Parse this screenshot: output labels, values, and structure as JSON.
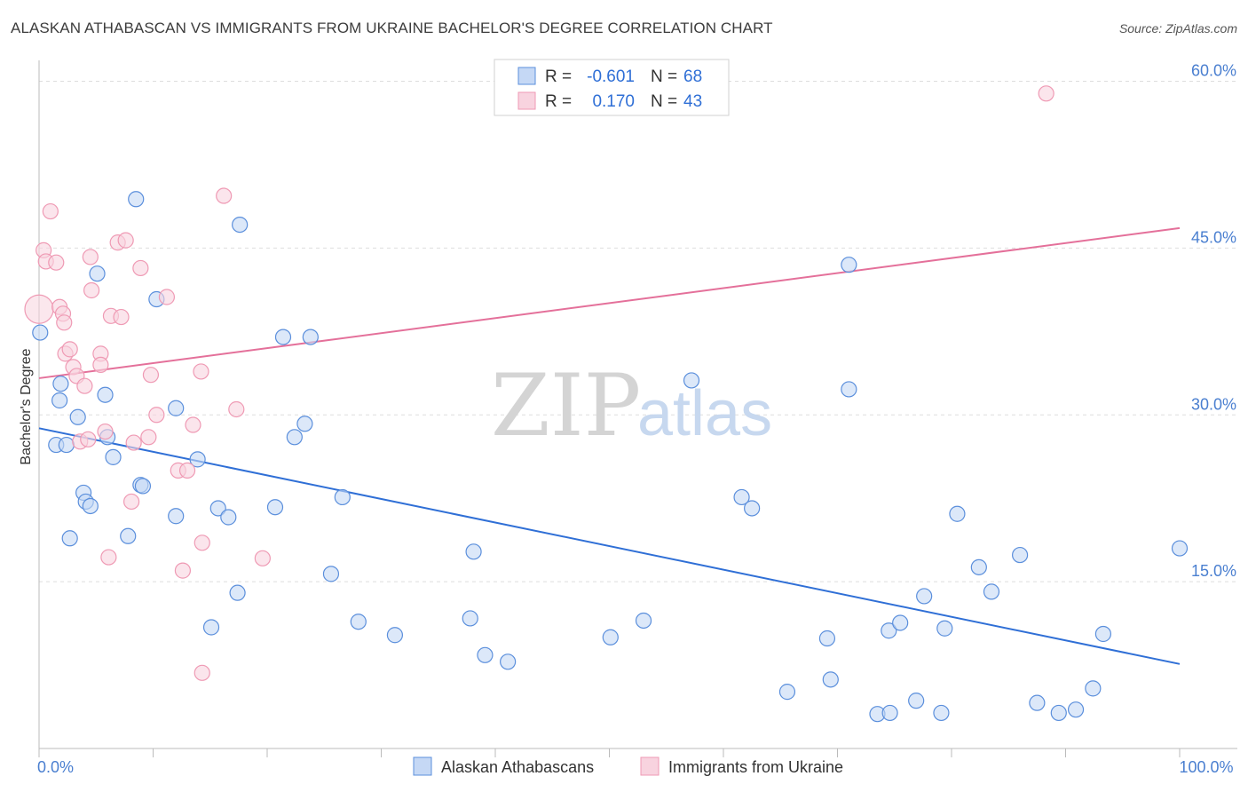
{
  "header": {
    "title": "ALASKAN ATHABASCAN VS IMMIGRANTS FROM UKRAINE BACHELOR'S DEGREE CORRELATION CHART",
    "source": "Source: ZipAtlas.com"
  },
  "watermark": {
    "zip": "ZIP",
    "atlas": "atlas"
  },
  "colors": {
    "blue": "#5b8fdc",
    "blue_fill": "#c5d8f5",
    "blue_line": "#2f6fd6",
    "pink": "#ef9ab4",
    "pink_fill": "#f8d3df",
    "pink_line": "#e4709a",
    "grid": "#dddddd",
    "axis": "#bbbbbb"
  },
  "stats": [
    {
      "r_label": "R =",
      "r_value": "-0.601",
      "n_label": "N =",
      "n_value": "68",
      "color": "blue"
    },
    {
      "r_label": "R =",
      "r_value": "0.170",
      "n_label": "N =",
      "n_value": "43",
      "color": "pink"
    }
  ],
  "chart_data": {
    "type": "scatter",
    "ylabel": "Bachelor's Degree",
    "xlim": [
      0,
      100
    ],
    "ylim": [
      0,
      61
    ],
    "y_ticks": [
      {
        "value": 15,
        "label": "15.0%"
      },
      {
        "value": 30,
        "label": "30.0%"
      },
      {
        "value": 45,
        "label": "45.0%"
      },
      {
        "value": 60,
        "label": "60.0%"
      }
    ],
    "x_tick_labels": [
      {
        "value": 0,
        "label": "0.0%"
      },
      {
        "value": 100,
        "label": "100.0%"
      }
    ],
    "x_minor_ticks": [
      10,
      20,
      30,
      40,
      50,
      60,
      70,
      80,
      90,
      100
    ],
    "grid": true,
    "legend_position": "bottom",
    "series": [
      {
        "name": "Alaskan Athabascans",
        "color": "blue",
        "trend": {
          "x": [
            0,
            100
          ],
          "y": [
            28.8,
            7.6
          ]
        },
        "points": [
          [
            0.1,
            37.4
          ],
          [
            1.8,
            31.3
          ],
          [
            1.5,
            27.3
          ],
          [
            2.4,
            27.3
          ],
          [
            1.9,
            32.8
          ],
          [
            2.7,
            18.9
          ],
          [
            3.4,
            29.8
          ],
          [
            3.9,
            23.0
          ],
          [
            4.1,
            22.2
          ],
          [
            4.5,
            21.8
          ],
          [
            5.1,
            42.7
          ],
          [
            5.8,
            31.8
          ],
          [
            6.0,
            28.0
          ],
          [
            6.5,
            26.2
          ],
          [
            7.8,
            19.1
          ],
          [
            8.5,
            49.4
          ],
          [
            8.9,
            23.7
          ],
          [
            9.1,
            23.6
          ],
          [
            10.3,
            40.4
          ],
          [
            12.0,
            30.6
          ],
          [
            12.0,
            20.9
          ],
          [
            13.9,
            26.0
          ],
          [
            15.1,
            10.9
          ],
          [
            15.7,
            21.6
          ],
          [
            16.6,
            20.8
          ],
          [
            17.4,
            14.0
          ],
          [
            17.6,
            47.1
          ],
          [
            20.7,
            21.7
          ],
          [
            21.4,
            37.0
          ],
          [
            22.4,
            28.0
          ],
          [
            23.3,
            29.2
          ],
          [
            23.8,
            37.0
          ],
          [
            25.6,
            15.7
          ],
          [
            26.6,
            22.6
          ],
          [
            28.0,
            11.4
          ],
          [
            31.2,
            10.2
          ],
          [
            37.8,
            11.7
          ],
          [
            38.1,
            17.7
          ],
          [
            39.1,
            8.4
          ],
          [
            41.1,
            7.8
          ],
          [
            50.1,
            10.0
          ],
          [
            53.0,
            11.5
          ],
          [
            57.2,
            33.1
          ],
          [
            61.6,
            22.6
          ],
          [
            62.5,
            21.6
          ],
          [
            65.6,
            5.1
          ],
          [
            69.1,
            9.9
          ],
          [
            69.4,
            6.2
          ],
          [
            71.0,
            43.5
          ],
          [
            71.0,
            32.3
          ],
          [
            73.5,
            3.1
          ],
          [
            74.6,
            3.2
          ],
          [
            74.5,
            10.6
          ],
          [
            75.5,
            11.3
          ],
          [
            76.9,
            4.3
          ],
          [
            77.6,
            13.7
          ],
          [
            79.1,
            3.2
          ],
          [
            79.4,
            10.8
          ],
          [
            80.5,
            21.1
          ],
          [
            82.4,
            16.3
          ],
          [
            83.5,
            14.1
          ],
          [
            86.0,
            17.4
          ],
          [
            87.5,
            4.1
          ],
          [
            89.4,
            3.2
          ],
          [
            90.9,
            3.5
          ],
          [
            92.4,
            5.4
          ],
          [
            93.3,
            10.3
          ],
          [
            100.0,
            18.0
          ]
        ]
      },
      {
        "name": "Immigrants from Ukraine",
        "color": "pink",
        "trend": {
          "x": [
            0,
            100
          ],
          "y": [
            33.3,
            46.8
          ]
        },
        "points": [
          [
            0.0,
            39.5
          ],
          [
            0.4,
            44.8
          ],
          [
            0.6,
            43.8
          ],
          [
            1.0,
            48.3
          ],
          [
            1.5,
            43.7
          ],
          [
            1.8,
            39.7
          ],
          [
            2.1,
            39.1
          ],
          [
            2.2,
            38.3
          ],
          [
            2.3,
            35.5
          ],
          [
            2.7,
            35.9
          ],
          [
            3.0,
            34.3
          ],
          [
            3.3,
            33.5
          ],
          [
            3.6,
            27.6
          ],
          [
            4.0,
            32.6
          ],
          [
            4.3,
            27.8
          ],
          [
            4.5,
            44.2
          ],
          [
            4.6,
            41.2
          ],
          [
            5.4,
            35.5
          ],
          [
            5.4,
            34.5
          ],
          [
            5.8,
            28.5
          ],
          [
            6.1,
            17.2
          ],
          [
            6.3,
            38.9
          ],
          [
            6.9,
            45.5
          ],
          [
            7.2,
            38.8
          ],
          [
            7.6,
            45.7
          ],
          [
            8.1,
            22.2
          ],
          [
            8.3,
            27.5
          ],
          [
            8.9,
            43.2
          ],
          [
            9.6,
            28.0
          ],
          [
            9.8,
            33.6
          ],
          [
            10.3,
            30.0
          ],
          [
            11.2,
            40.6
          ],
          [
            12.2,
            25.0
          ],
          [
            12.6,
            16.0
          ],
          [
            13.0,
            25.0
          ],
          [
            13.5,
            29.1
          ],
          [
            14.2,
            33.9
          ],
          [
            14.3,
            18.5
          ],
          [
            14.3,
            6.8
          ],
          [
            16.2,
            49.7
          ],
          [
            17.3,
            30.5
          ],
          [
            19.6,
            17.1
          ],
          [
            88.3,
            58.9
          ]
        ]
      }
    ]
  }
}
